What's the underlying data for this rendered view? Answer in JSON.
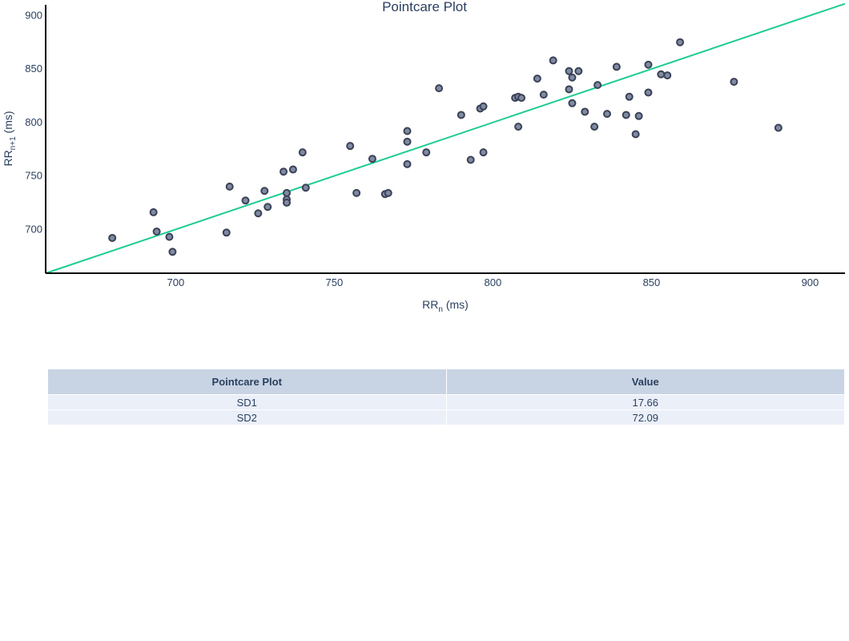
{
  "chart_data": {
    "type": "scatter",
    "title": "Pointcare Plot",
    "xlabel": {
      "main": "RR",
      "sub": "n",
      "unit": " (ms)"
    },
    "ylabel": {
      "main": "RR",
      "sub": "n+1",
      "unit": " (ms)"
    },
    "xlim": [
      659,
      911
    ],
    "ylim": [
      659,
      910
    ],
    "xticks": [
      700,
      750,
      800,
      850,
      900
    ],
    "yticks": [
      700,
      750,
      800,
      850,
      900
    ],
    "grid": false,
    "marker_fill": "#7f8aa3",
    "marker_edge": "#3b4256",
    "line_color": "#1ecc94",
    "identity_line": {
      "x": [
        659,
        911
      ],
      "y": [
        659,
        911
      ]
    },
    "points": [
      [
        680,
        692
      ],
      [
        693,
        716
      ],
      [
        694,
        698
      ],
      [
        698,
        693
      ],
      [
        699,
        679
      ],
      [
        716,
        697
      ],
      [
        717,
        740
      ],
      [
        722,
        727
      ],
      [
        726,
        715
      ],
      [
        728,
        736
      ],
      [
        729,
        721
      ],
      [
        734,
        754
      ],
      [
        735,
        734
      ],
      [
        735,
        728
      ],
      [
        735,
        725
      ],
      [
        737,
        756
      ],
      [
        740,
        772
      ],
      [
        741,
        739
      ],
      [
        755,
        778
      ],
      [
        757,
        734
      ],
      [
        762,
        766
      ],
      [
        766,
        733
      ],
      [
        767,
        734
      ],
      [
        773,
        792
      ],
      [
        773,
        782
      ],
      [
        773,
        761
      ],
      [
        779,
        772
      ],
      [
        783,
        832
      ],
      [
        790,
        807
      ],
      [
        793,
        765
      ],
      [
        796,
        813
      ],
      [
        797,
        815
      ],
      [
        797,
        772
      ],
      [
        807,
        823
      ],
      [
        808,
        824
      ],
      [
        809,
        823
      ],
      [
        808,
        796
      ],
      [
        814,
        841
      ],
      [
        816,
        826
      ],
      [
        819,
        858
      ],
      [
        824,
        848
      ],
      [
        824,
        831
      ],
      [
        825,
        842
      ],
      [
        825,
        818
      ],
      [
        827,
        848
      ],
      [
        829,
        810
      ],
      [
        832,
        796
      ],
      [
        833,
        835
      ],
      [
        836,
        808
      ],
      [
        839,
        852
      ],
      [
        842,
        807
      ],
      [
        843,
        824
      ],
      [
        845,
        789
      ],
      [
        846,
        806
      ],
      [
        849,
        854
      ],
      [
        849,
        828
      ],
      [
        853,
        845
      ],
      [
        855,
        844
      ],
      [
        859,
        875
      ],
      [
        876,
        838
      ],
      [
        890,
        795
      ]
    ]
  },
  "table": {
    "headers": [
      "Pointcare Plot",
      "Value"
    ],
    "rows": [
      [
        "SD1",
        "17.66"
      ],
      [
        "SD2",
        "72.09"
      ]
    ]
  }
}
